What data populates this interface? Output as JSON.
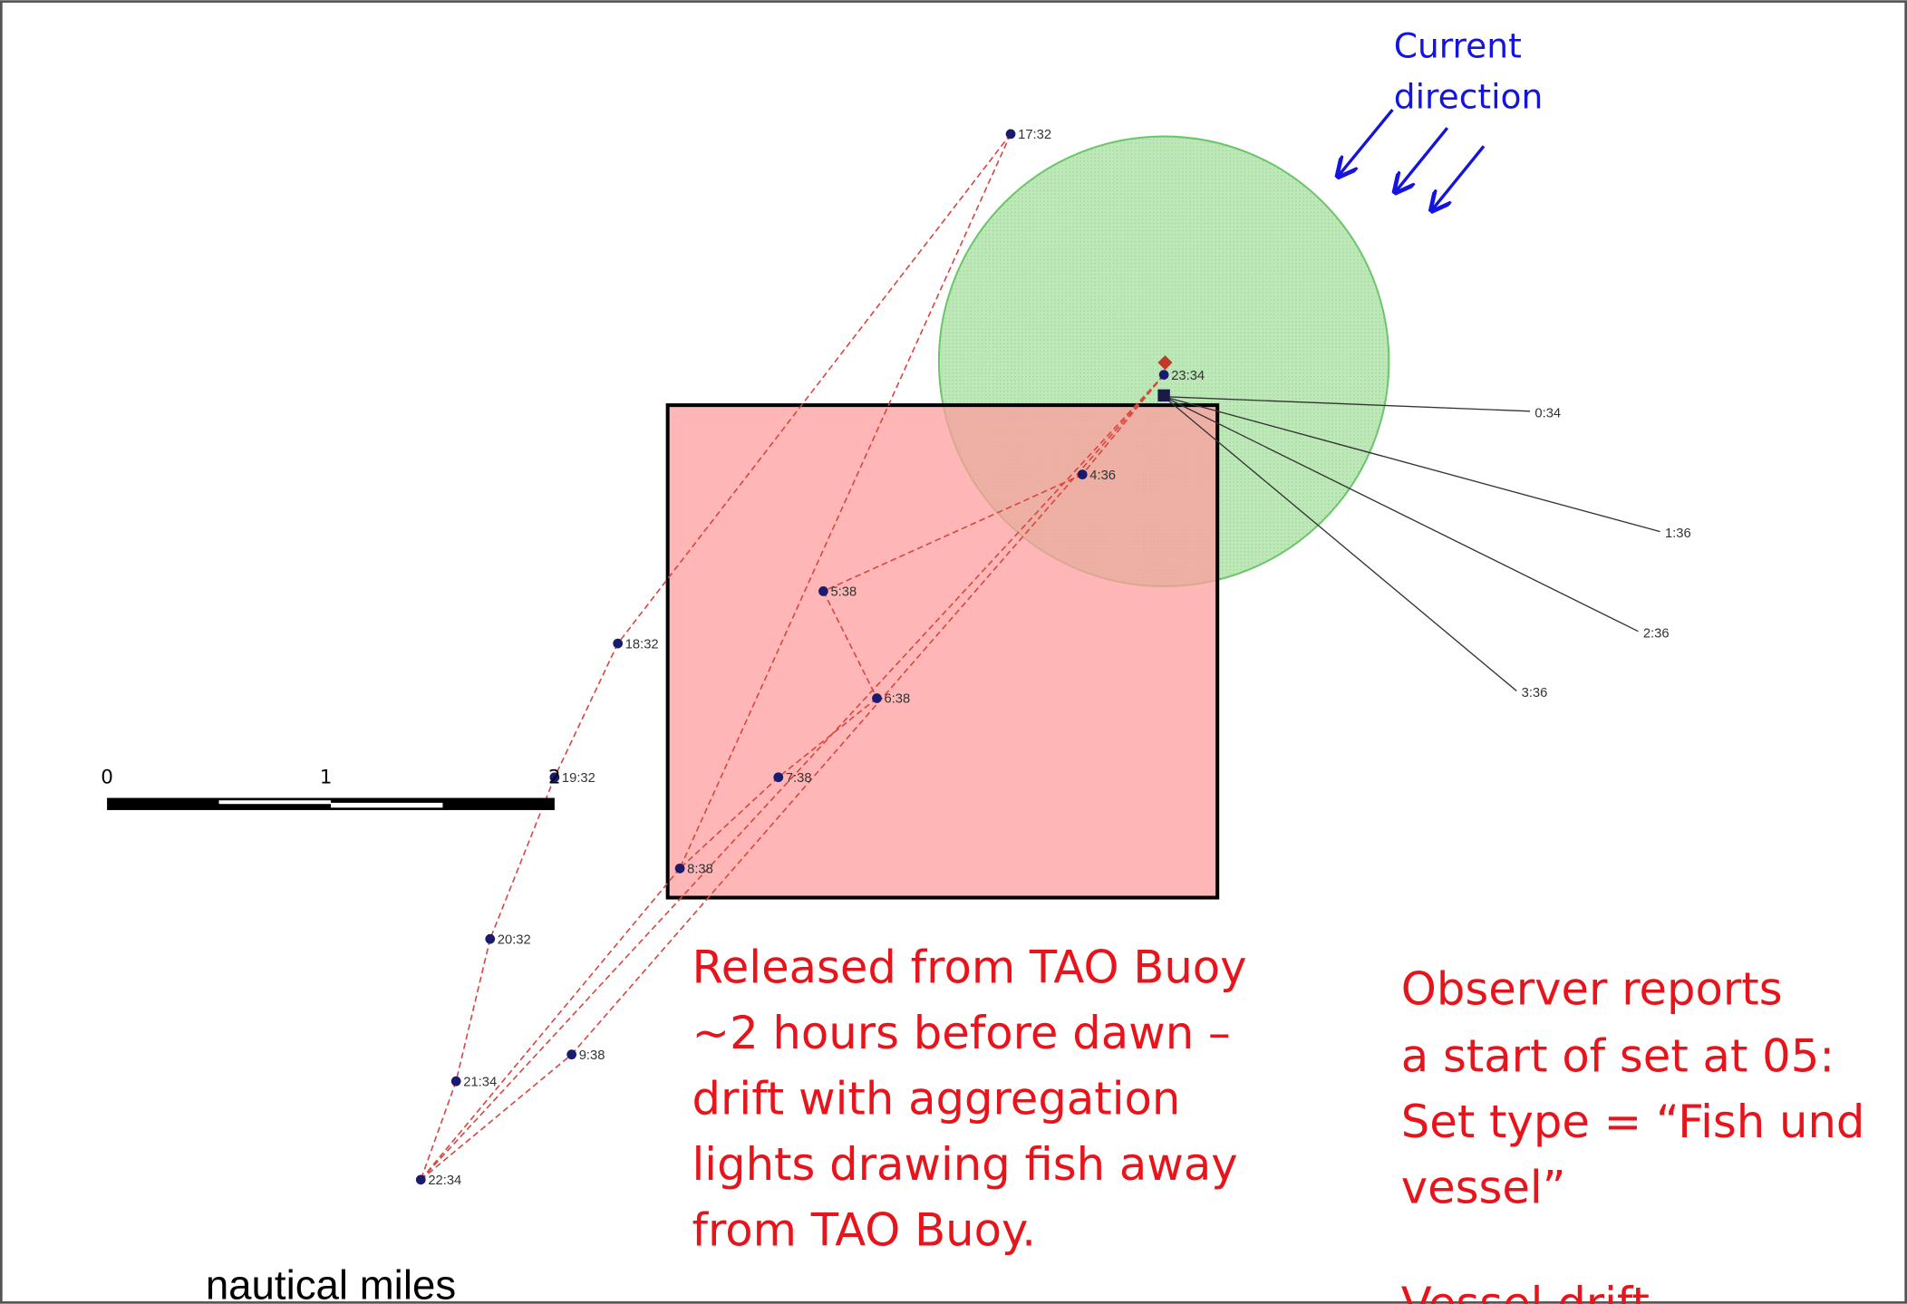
{
  "current_label": [
    "Current",
    "direction"
  ],
  "track_points": [
    {
      "label": "17:32"
    },
    {
      "label": "18:32"
    },
    {
      "label": "19:32"
    },
    {
      "label": "20:32"
    },
    {
      "label": "21:34"
    },
    {
      "label": "22:34"
    },
    {
      "label": "23:34"
    },
    {
      "label": "4:36"
    },
    {
      "label": "5:38"
    },
    {
      "label": "6:38"
    },
    {
      "label": "7:38"
    },
    {
      "label": "8:38"
    },
    {
      "label": "9:38"
    }
  ],
  "vessel_points": [
    {
      "label": "0:34"
    },
    {
      "label": "1:36"
    },
    {
      "label": "2:36"
    },
    {
      "label": "3:36"
    }
  ],
  "annotation_left": [
    "Released from TAO Buoy",
    "~2 hours before dawn –",
    "drift with aggregation",
    "lights drawing fish away",
    "from TAO Buoy."
  ],
  "annotation_right": [
    "Observer reports",
    "a start of set at 05:",
    "Set type = “Fish und",
    "vessel”",
    "Vessel drift"
  ],
  "scale_bar": {
    "ticks": [
      0,
      1,
      2
    ],
    "unit": "nautical miles"
  }
}
